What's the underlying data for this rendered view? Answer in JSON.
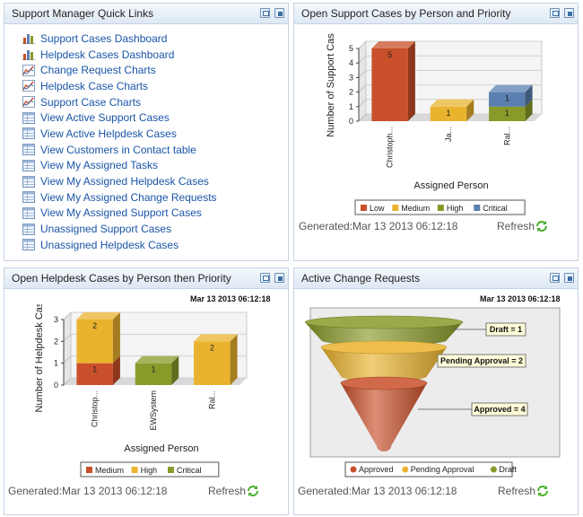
{
  "quick_links": {
    "title": "Support Manager Quick Links",
    "items": [
      {
        "label": "Support Cases Dashboard",
        "icon": "bar-chart-icon"
      },
      {
        "label": "Helpdesk Cases Dashboard",
        "icon": "bar-chart-icon"
      },
      {
        "label": "Change Request Charts",
        "icon": "line-chart-icon"
      },
      {
        "label": "Helpdesk Case Charts",
        "icon": "line-chart-icon"
      },
      {
        "label": "Support Case Charts",
        "icon": "line-chart-icon"
      },
      {
        "label": "View Active Support Cases",
        "icon": "table-icon"
      },
      {
        "label": "View Active Helpdesk Cases",
        "icon": "table-icon"
      },
      {
        "label": "View Customers in Contact table",
        "icon": "table-icon"
      },
      {
        "label": "View My Assigned Tasks",
        "icon": "table-icon"
      },
      {
        "label": "View My Assigned Helpdesk Cases",
        "icon": "table-icon"
      },
      {
        "label": "View My Assigned Change Requests",
        "icon": "table-icon"
      },
      {
        "label": "View My Assigned Support Cases",
        "icon": "table-icon"
      },
      {
        "label": "Unassigned Support Cases",
        "icon": "table-icon"
      },
      {
        "label": "Unassigned Helpdesk Cases",
        "icon": "table-icon"
      }
    ]
  },
  "support_panel": {
    "title": "Open Support Cases by Person and Priority",
    "generated": "Generated:Mar 13 2013 06:12:18",
    "refresh": "Refresh"
  },
  "helpdesk_panel": {
    "title": "Open Helpdesk Cases by Person then Priority",
    "timestamp": "Mar 13 2013 06:12:18",
    "generated": "Generated:Mar 13 2013 06:12:18",
    "refresh": "Refresh"
  },
  "change_panel": {
    "title": "Active Change Requests",
    "timestamp": "Mar 13 2013 06:12:18",
    "generated": "Generated:Mar 13 2013 06:12:18",
    "refresh": "Refresh"
  },
  "colors": {
    "low": "#c9502a",
    "medium": "#eab32e",
    "high": "#8a9a2a",
    "critical": "#5b7fb0",
    "link": "#1a55a8",
    "refresh": "#4caf2a"
  },
  "chart_data": [
    {
      "type": "bar",
      "stacked": true,
      "categories": [
        "Christoph...",
        "Ja...",
        "Ral..."
      ],
      "series": [
        {
          "name": "Low",
          "values": [
            5,
            0,
            0
          ],
          "color": "#c9502a"
        },
        {
          "name": "Medium",
          "values": [
            0,
            1,
            0
          ],
          "color": "#eab32e"
        },
        {
          "name": "High",
          "values": [
            0,
            0,
            1
          ],
          "color": "#8a9a2a"
        },
        {
          "name": "Critical",
          "values": [
            0,
            0,
            1
          ],
          "color": "#5b7fb0"
        }
      ],
      "xlabel": "Assigned Person",
      "ylabel": "Number of Support Cas",
      "ylim": [
        0,
        5
      ],
      "yticks": [
        "0",
        "1",
        "2",
        "3",
        "4",
        "5"
      ],
      "legend": "bottom"
    },
    {
      "type": "bar",
      "stacked": true,
      "categories": [
        "Christop...",
        "EWSystem",
        "Ral..."
      ],
      "series": [
        {
          "name": "Medium",
          "values": [
            1,
            0,
            0
          ],
          "color": "#c9502a"
        },
        {
          "name": "High",
          "values": [
            2,
            0,
            2
          ],
          "color": "#eab32e"
        },
        {
          "name": "Critical",
          "values": [
            0,
            1,
            0
          ],
          "color": "#8a9a2a"
        }
      ],
      "xlabel": "Assigned Person",
      "ylabel": "Number of Helpdesk Case",
      "ylim": [
        0,
        3
      ],
      "yticks": [
        "0",
        "1",
        "2",
        "3"
      ],
      "legend": "bottom"
    },
    {
      "type": "funnel",
      "stages": [
        {
          "name": "Draft",
          "value": 1,
          "label": "Draft = 1",
          "color": "#8a9a2a"
        },
        {
          "name": "Pending Approval",
          "value": 2,
          "label": "Pending Approval = 2",
          "color": "#eab32e"
        },
        {
          "name": "Approved",
          "value": 4,
          "label": "Approved = 4",
          "color": "#c9502a"
        }
      ],
      "legend_order": [
        "Approved",
        "Pending Approval",
        "Draft"
      ],
      "legend": "bottom"
    }
  ]
}
